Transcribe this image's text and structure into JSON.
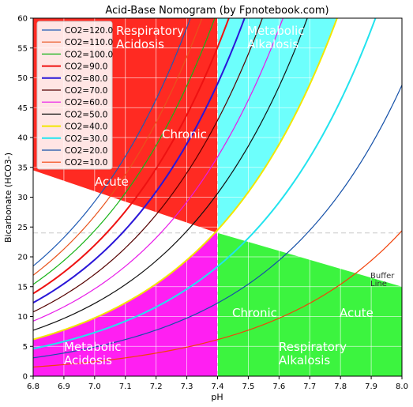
{
  "chart_data": {
    "type": "line",
    "title": "Acid-Base Nomogram (by Fpnotebook.com)",
    "xlabel": "pH",
    "ylabel": "Bicarbonate (HCO3-)",
    "xlim": [
      6.8,
      8.0
    ],
    "ylim": [
      0,
      60
    ],
    "x_ticks": [
      "6.8",
      "6.9",
      "7.0",
      "7.1",
      "7.2",
      "7.3",
      "7.4",
      "7.5",
      "7.6",
      "7.7",
      "7.8",
      "7.9",
      "8.0"
    ],
    "y_ticks": [
      "0",
      "5",
      "10",
      "15",
      "20",
      "25",
      "30",
      "35",
      "40",
      "45",
      "50",
      "55",
      "60"
    ],
    "grid": true,
    "legend_position": "top-left",
    "normal_ph": 7.4,
    "normal_hco3": 24,
    "buffer_line": [
      [
        6.8,
        34.5
      ],
      [
        7.4,
        24
      ],
      [
        8.0,
        15
      ]
    ],
    "regions": [
      {
        "name": "respiratory-acidosis",
        "color": "#ff2a22",
        "line1": "Respiratory",
        "line2": "Acidosis",
        "chronic": "Chronic",
        "acute": "Acute"
      },
      {
        "name": "metabolic-alkalosis",
        "color": "#6dfffc",
        "line1": "Metabolic",
        "line2": "Alkalosis"
      },
      {
        "name": "metabolic-acidosis",
        "color": "#ff1ff2",
        "line1": "Metabolic",
        "line2": "Acidosis"
      },
      {
        "name": "respiratory-alkalosis",
        "color": "#3cf43f",
        "line1": "Respiratory",
        "line2": "Alkalosis",
        "chronic": "Chronic",
        "acute": "Acute"
      }
    ],
    "buffer_label": {
      "line1": "Buffer",
      "line2": "Line"
    },
    "series": [
      {
        "name": "CO2=120.0",
        "pco2": 120,
        "color": "#1f5ab4",
        "width": 1.2
      },
      {
        "name": "CO2=110.0",
        "pco2": 110,
        "color": "#e8531c",
        "width": 1.2
      },
      {
        "name": "CO2=100.0",
        "pco2": 100,
        "color": "#17b317",
        "width": 1.2
      },
      {
        "name": "CO2=90.0",
        "pco2": 90,
        "color": "#ee1111",
        "width": 2
      },
      {
        "name": "CO2=80.0",
        "pco2": 80,
        "color": "#2a16d8",
        "width": 2
      },
      {
        "name": "CO2=70.0",
        "pco2": 70,
        "color": "#550000",
        "width": 1.2
      },
      {
        "name": "CO2=60.0",
        "pco2": 60,
        "color": "#e81ae8",
        "width": 1.2
      },
      {
        "name": "CO2=50.0",
        "pco2": 50,
        "color": "#111111",
        "width": 1.2
      },
      {
        "name": "CO2=40.0",
        "pco2": 40,
        "color": "#f2e600",
        "width": 2
      },
      {
        "name": "CO2=30.0",
        "pco2": 30,
        "color": "#22e3ee",
        "width": 2
      },
      {
        "name": "CO2=20.0",
        "pco2": 20,
        "color": "#1450a8",
        "width": 1.2
      },
      {
        "name": "CO2=10.0",
        "pco2": 10,
        "color": "#f2420a",
        "width": 1.2
      }
    ]
  }
}
